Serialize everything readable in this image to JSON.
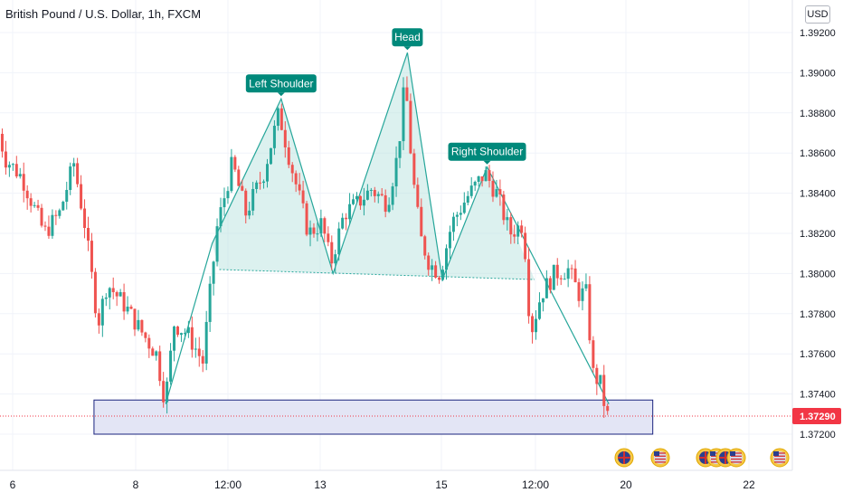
{
  "chart_title": "British Pound / U.S. Dollar, 1h, FXCM",
  "currency_label": "USD",
  "last_price_label": "1.37290",
  "colors": {
    "up": "#26a69a",
    "down": "#ef5350",
    "pattern_fill": "#b2dfdb",
    "pattern_line": "#26a69a",
    "label_bg": "#00897b",
    "zone_fill": "#e3e5f5",
    "zone_border": "#1a237e",
    "price_line": "#f23645",
    "grid": "#f0f3fa",
    "axis_text": "#131722"
  },
  "icons": [
    "flag-gb-icon",
    "flag-us-icon"
  ],
  "chart_data": {
    "type": "candlestick",
    "title": "British Pound / U.S. Dollar, 1h, FXCM",
    "y_ticks": [
      "1.37200",
      "1.37400",
      "1.37600",
      "1.37800",
      "1.38000",
      "1.38200",
      "1.38400",
      "1.38600",
      "1.38800",
      "1.39000",
      "1.39200"
    ],
    "ylim": [
      1.371,
      1.393
    ],
    "x_ticks": [
      "6",
      "8",
      "12:00",
      "13",
      "15",
      "12:00",
      "20",
      "22"
    ],
    "grid": true,
    "last_price": 1.3729,
    "pattern": {
      "name": "head-and-shoulders",
      "labels": [
        "Left Shoulder",
        "Head",
        "Right Shoulder"
      ],
      "points": [
        {
          "bar": 188,
          "price": 1.3735
        },
        {
          "bar": 240,
          "price": 1.3815
        },
        {
          "bar": 317,
          "price": 1.3887
        },
        {
          "bar": 375,
          "price": 1.38
        },
        {
          "bar": 458,
          "price": 1.391
        },
        {
          "bar": 497,
          "price": 1.3797
        },
        {
          "bar": 547,
          "price": 1.3853
        },
        {
          "bar": 683,
          "price": 1.3735
        }
      ],
      "neckline": [
        {
          "bar": 248,
          "price": 1.3802
        },
        {
          "bar": 600,
          "price": 1.3797
        }
      ]
    },
    "support_zone": {
      "price_low": 1.372,
      "price_high": 1.3737,
      "bar_start": 108,
      "bar_end": 732
    },
    "ohlc_anchors": [
      {
        "bar": 0,
        "price": 1.3876
      },
      {
        "bar": 12,
        "price": 1.3857
      },
      {
        "bar": 30,
        "price": 1.3848
      },
      {
        "bar": 55,
        "price": 1.382
      },
      {
        "bar": 72,
        "price": 1.383
      },
      {
        "bar": 88,
        "price": 1.3855
      },
      {
        "bar": 100,
        "price": 1.3825
      },
      {
        "bar": 115,
        "price": 1.3775
      },
      {
        "bar": 125,
        "price": 1.3795
      },
      {
        "bar": 145,
        "price": 1.3784
      },
      {
        "bar": 165,
        "price": 1.377
      },
      {
        "bar": 180,
        "price": 1.376
      },
      {
        "bar": 190,
        "price": 1.3736
      },
      {
        "bar": 200,
        "price": 1.3775
      },
      {
        "bar": 215,
        "price": 1.377
      },
      {
        "bar": 232,
        "price": 1.3756
      },
      {
        "bar": 240,
        "price": 1.379
      },
      {
        "bar": 248,
        "price": 1.3823
      },
      {
        "bar": 265,
        "price": 1.3855
      },
      {
        "bar": 280,
        "price": 1.383
      },
      {
        "bar": 300,
        "price": 1.385
      },
      {
        "bar": 317,
        "price": 1.388
      },
      {
        "bar": 330,
        "price": 1.3855
      },
      {
        "bar": 350,
        "price": 1.382
      },
      {
        "bar": 365,
        "price": 1.3825
      },
      {
        "bar": 375,
        "price": 1.3805
      },
      {
        "bar": 390,
        "price": 1.383
      },
      {
        "bar": 405,
        "price": 1.3835
      },
      {
        "bar": 420,
        "price": 1.3842
      },
      {
        "bar": 438,
        "price": 1.3835
      },
      {
        "bar": 450,
        "price": 1.386
      },
      {
        "bar": 458,
        "price": 1.3897
      },
      {
        "bar": 466,
        "price": 1.385
      },
      {
        "bar": 475,
        "price": 1.3818
      },
      {
        "bar": 485,
        "price": 1.3805
      },
      {
        "bar": 497,
        "price": 1.38
      },
      {
        "bar": 510,
        "price": 1.3825
      },
      {
        "bar": 527,
        "price": 1.3838
      },
      {
        "bar": 547,
        "price": 1.385
      },
      {
        "bar": 560,
        "price": 1.384
      },
      {
        "bar": 575,
        "price": 1.382
      },
      {
        "bar": 590,
        "price": 1.3825
      },
      {
        "bar": 598,
        "price": 1.377
      },
      {
        "bar": 610,
        "price": 1.379
      },
      {
        "bar": 625,
        "price": 1.38
      },
      {
        "bar": 640,
        "price": 1.3802
      },
      {
        "bar": 652,
        "price": 1.379
      },
      {
        "bar": 660,
        "price": 1.379
      },
      {
        "bar": 668,
        "price": 1.375
      },
      {
        "bar": 676,
        "price": 1.3745
      },
      {
        "bar": 683,
        "price": 1.3729
      }
    ]
  }
}
